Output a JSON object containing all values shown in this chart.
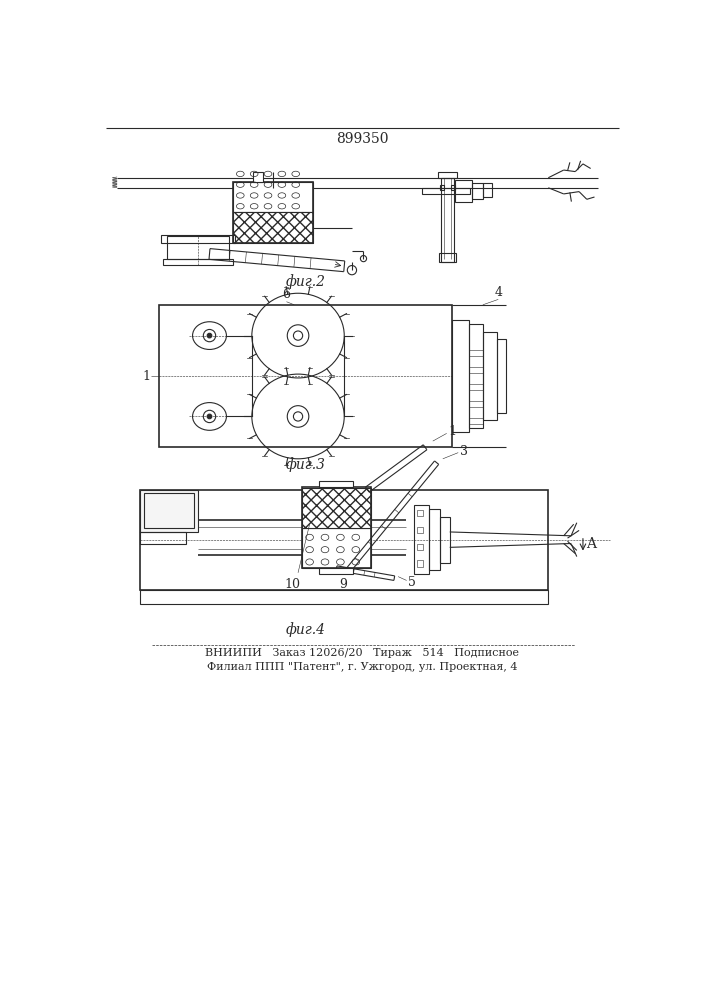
{
  "patent_number": "899350",
  "fig2_caption": "фиг.2",
  "fig3_caption": "фиг.3",
  "fig4_caption": "фиг.4",
  "footer_line1": "ВНИИПИ   Заказ 12026/20   Тираж   514   Подписное",
  "footer_line2": "Филиал ППП \"Патент\", г. Ужгород, ул. Проектная, 4",
  "bg_color": "#ffffff",
  "line_color": "#2a2a2a",
  "label_color": "#2a2a2a",
  "font_size_caption": 10,
  "font_size_footer": 8,
  "font_size_patent": 10,
  "font_size_label": 9
}
